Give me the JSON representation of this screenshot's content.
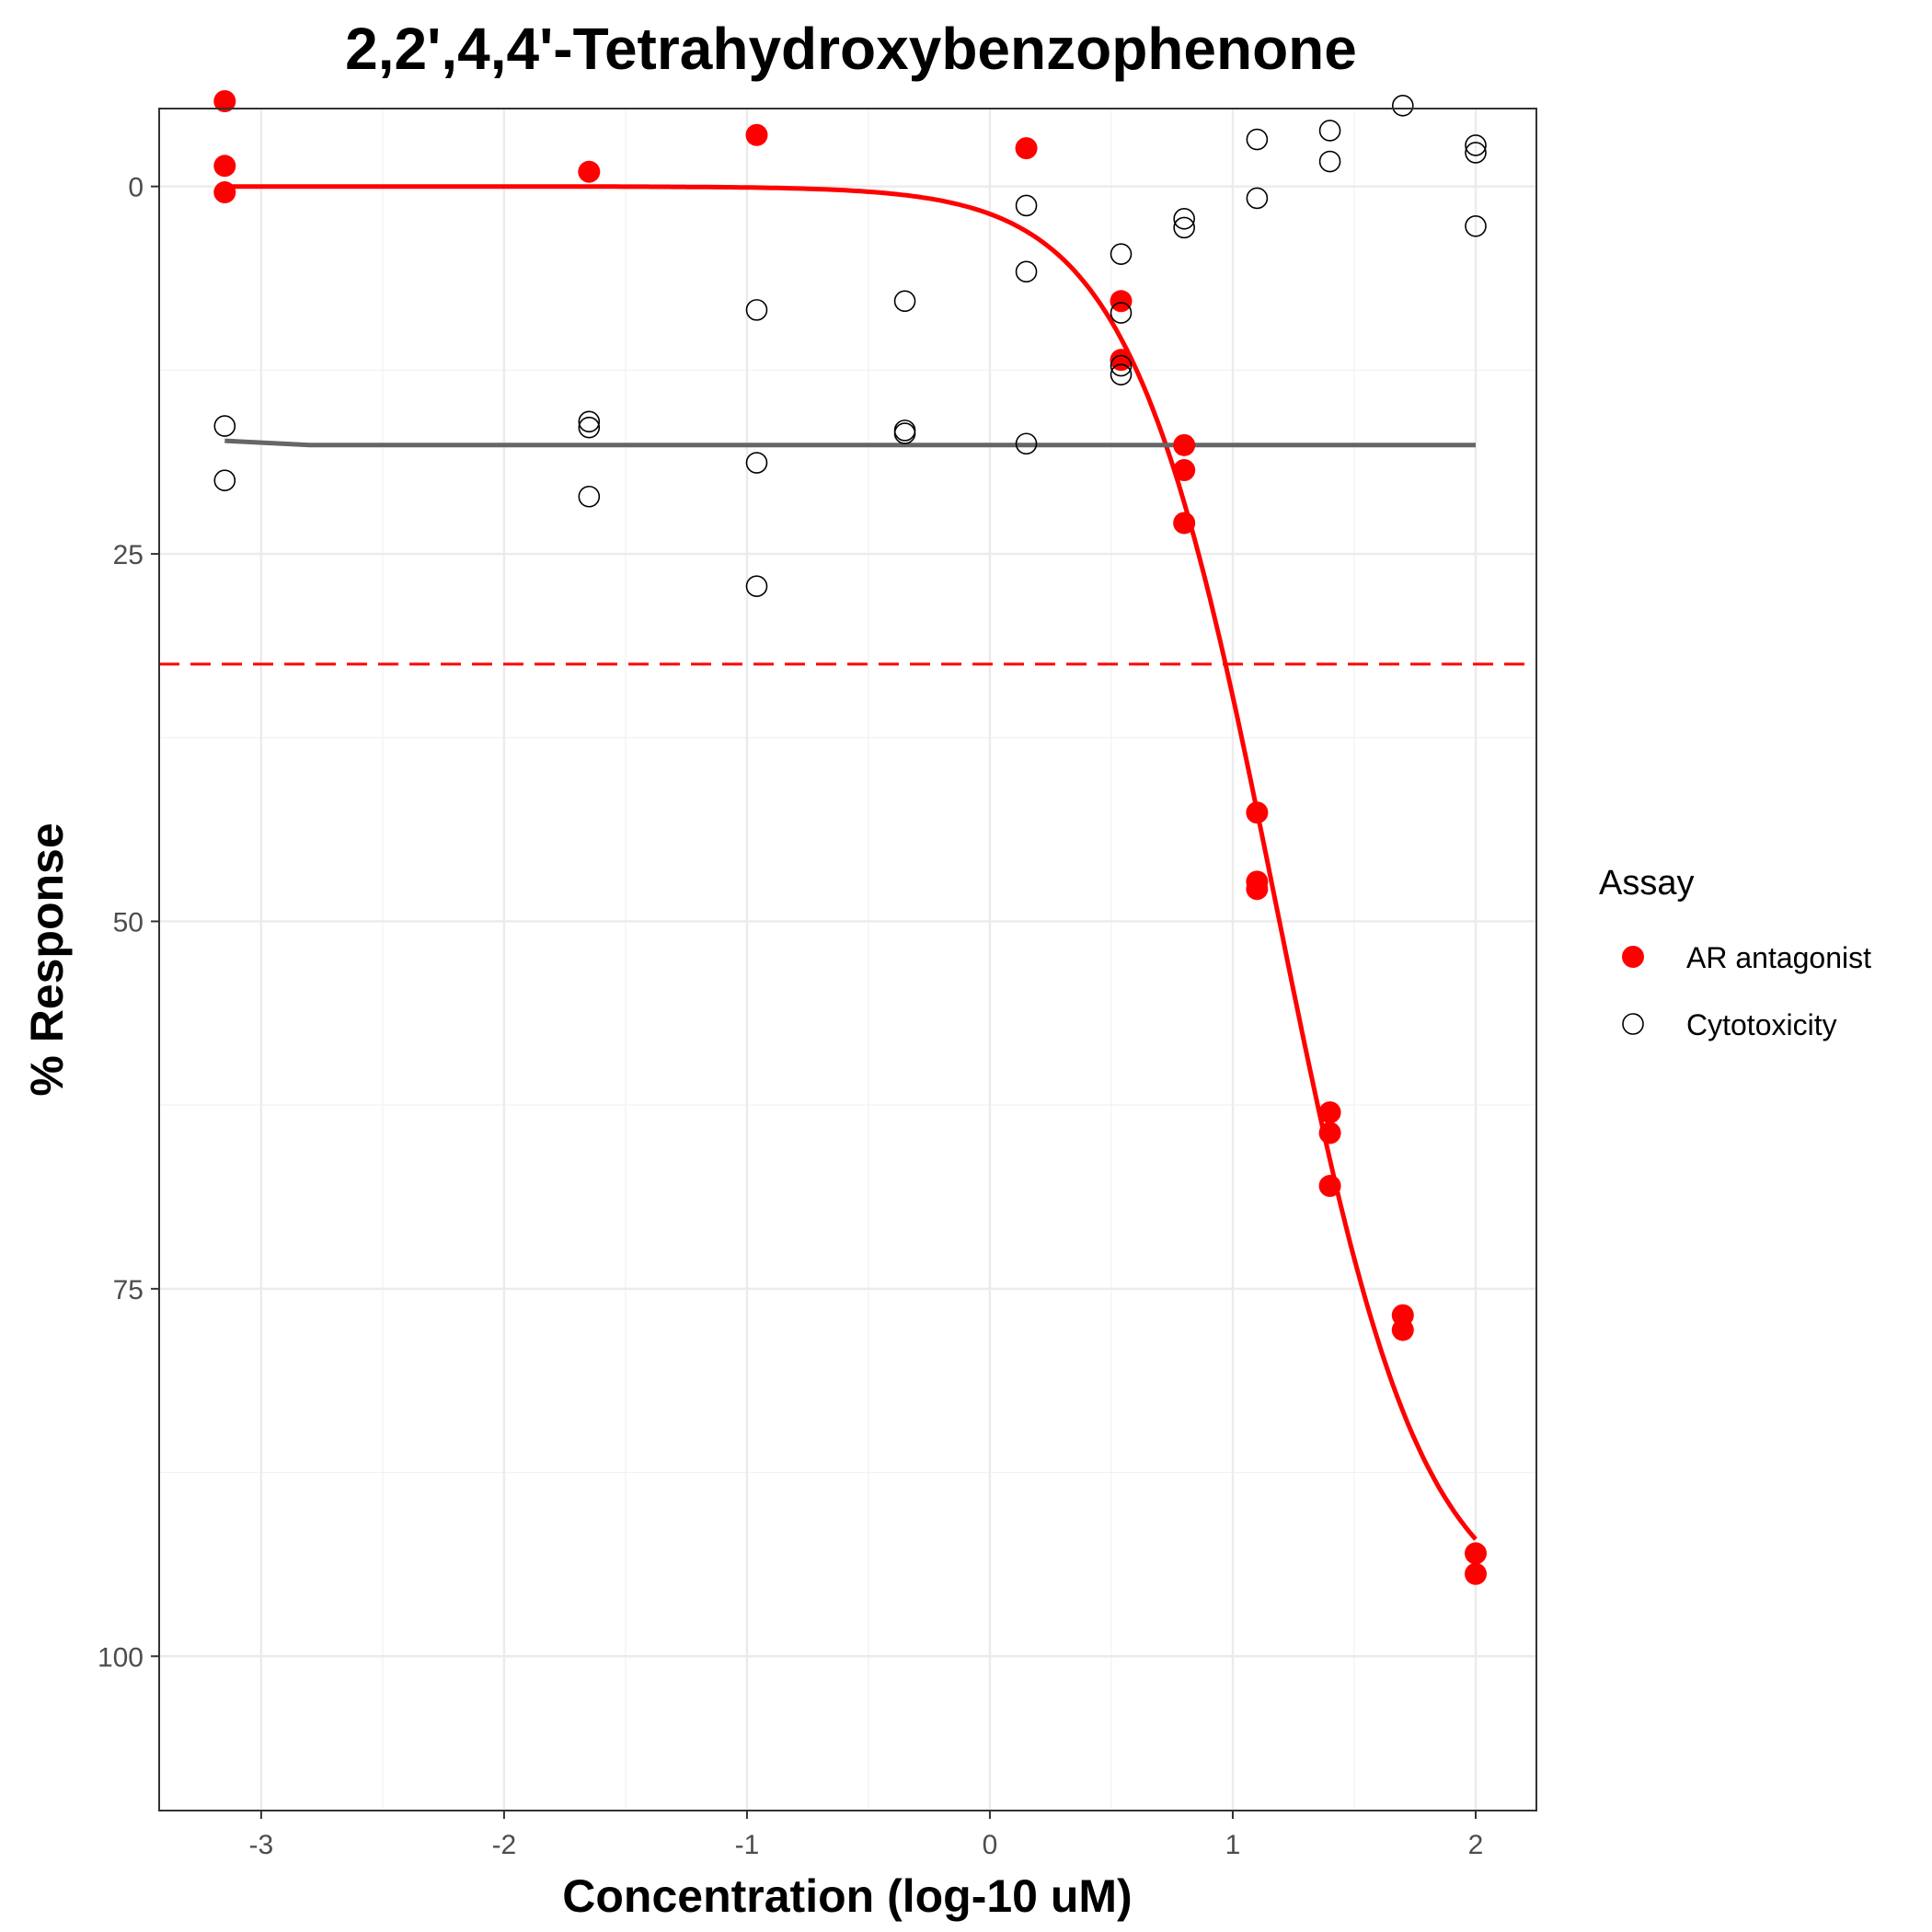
{
  "chart_data": {
    "type": "scatter",
    "title": "2,2',4,4'-Tetrahydroxybenzophenone",
    "xlabel": "Concentration (log-10 uM)",
    "ylabel": "% Response",
    "xlim": [
      -3.42,
      2.25
    ],
    "ylim": [
      -5.3,
      110.5
    ],
    "y_reversed": true,
    "x_ticks": [
      -3,
      -2,
      -1,
      0,
      1,
      2
    ],
    "x_tick_labels": [
      "-3",
      "-2",
      "-1",
      "0",
      "1",
      "2"
    ],
    "y_ticks": [
      0,
      25,
      50,
      75,
      100
    ],
    "y_tick_labels": [
      "0",
      "25",
      "50",
      "75",
      "100"
    ],
    "grid": true,
    "legend": {
      "title": "Assay",
      "position": "right",
      "entries": [
        "AR antagonist",
        "Cytotoxicity"
      ]
    },
    "threshold": {
      "y": 32.5,
      "style": "dashed",
      "color": "#ff0000"
    },
    "series": [
      {
        "name": "AR antagonist",
        "marker": "filled-circle",
        "color": "#ff0000",
        "points": [
          [
            -3.15,
            -5.8
          ],
          [
            -3.15,
            -1.4
          ],
          [
            -3.15,
            0.4
          ],
          [
            -1.65,
            -1.0
          ],
          [
            -0.96,
            -3.5
          ],
          [
            0.15,
            -2.6
          ],
          [
            0.54,
            7.8
          ],
          [
            0.54,
            11.8
          ],
          [
            0.8,
            17.6
          ],
          [
            0.8,
            19.3
          ],
          [
            0.8,
            22.9
          ],
          [
            1.1,
            42.6
          ],
          [
            1.1,
            47.3
          ],
          [
            1.1,
            47.8
          ],
          [
            1.4,
            63.0
          ],
          [
            1.4,
            64.4
          ],
          [
            1.4,
            68.0
          ],
          [
            1.7,
            76.8
          ],
          [
            1.7,
            77.8
          ],
          [
            2.0,
            93.0
          ],
          [
            2.0,
            94.4
          ]
        ]
      },
      {
        "name": "Cytotoxicity",
        "marker": "open-circle",
        "color": "#000000",
        "points": [
          [
            -3.15,
            16.3
          ],
          [
            -3.15,
            20.0
          ],
          [
            -1.65,
            16.0
          ],
          [
            -1.65,
            16.4
          ],
          [
            -1.65,
            21.1
          ],
          [
            -0.96,
            8.4
          ],
          [
            -0.96,
            18.8
          ],
          [
            -0.96,
            27.2
          ],
          [
            -0.35,
            7.8
          ],
          [
            -0.35,
            16.6
          ],
          [
            -0.35,
            16.8
          ],
          [
            0.15,
            1.3
          ],
          [
            0.15,
            5.8
          ],
          [
            0.15,
            17.5
          ],
          [
            0.54,
            4.6
          ],
          [
            0.54,
            8.6
          ],
          [
            0.54,
            12.2
          ],
          [
            0.54,
            12.8
          ],
          [
            0.8,
            2.2
          ],
          [
            0.8,
            2.8
          ],
          [
            1.1,
            -3.2
          ],
          [
            1.1,
            0.8
          ],
          [
            1.4,
            -3.8
          ],
          [
            1.4,
            -1.7
          ],
          [
            1.7,
            -5.5
          ],
          [
            2.0,
            -2.8
          ],
          [
            2.0,
            -2.3
          ],
          [
            2.0,
            2.7
          ]
        ]
      }
    ],
    "fit_lines": [
      {
        "name": "AR antagonist",
        "color": "#ff0000",
        "model": "hill",
        "x_range": [
          -3.15,
          2.0
        ],
        "top": 0,
        "bottom": 98,
        "log_ac50": 1.18,
        "hill": 1.45
      },
      {
        "name": "Cytotoxicity",
        "color": "#666666",
        "points": [
          [
            -3.15,
            17.3
          ],
          [
            -2.8,
            17.6
          ],
          [
            -2.0,
            17.6
          ],
          [
            0.0,
            17.6
          ],
          [
            2.0,
            17.6
          ]
        ]
      }
    ]
  }
}
